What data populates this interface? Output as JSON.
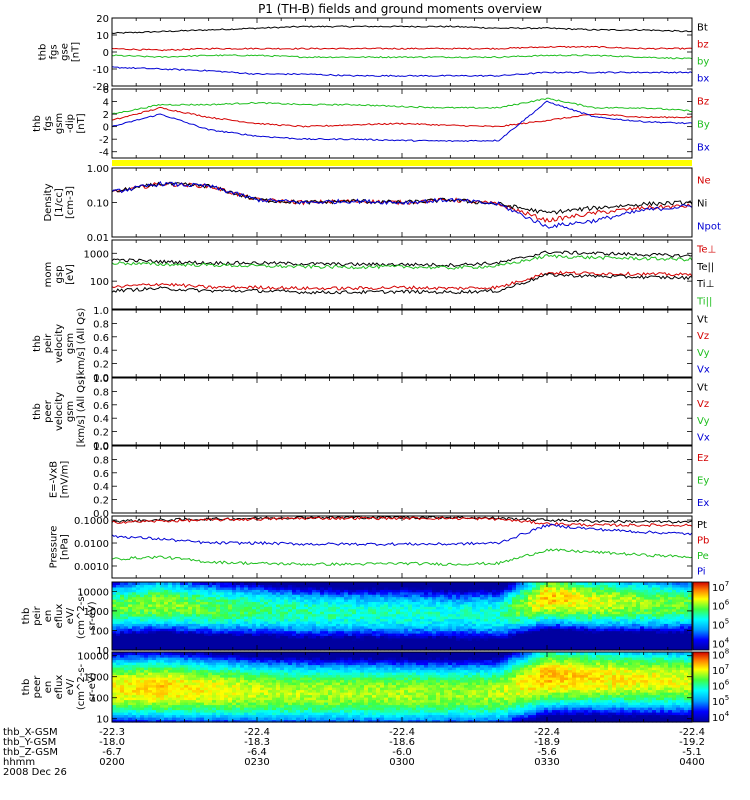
{
  "title": "P1 (TH-B) fields and ground moments overview",
  "chart_data": [
    {
      "type": "line",
      "ylabel": [
        "thb",
        "fgs",
        "gse",
        "[nT]"
      ],
      "ylim": [
        -20,
        20
      ],
      "yticks": [
        20,
        10,
        0,
        -10,
        -20
      ],
      "yscale": "linear",
      "legend": [
        {
          "name": "Bt",
          "color": "#000000"
        },
        {
          "name": "bz",
          "color": "#d40000"
        },
        {
          "name": "by",
          "color": "#1fbf1f"
        },
        {
          "name": "bx",
          "color": "#0000d4"
        }
      ],
      "series": [
        {
          "name": "Bt",
          "values": [
            11,
            12,
            13,
            14,
            15,
            15,
            15,
            15,
            14,
            14,
            13,
            13,
            12
          ]
        },
        {
          "name": "bz",
          "values": [
            2,
            1,
            2,
            2,
            2,
            2,
            2,
            2,
            2,
            3,
            3,
            2,
            2
          ]
        },
        {
          "name": "by",
          "values": [
            -2,
            -3,
            -2,
            -2,
            -3,
            -3,
            -3,
            -3,
            -3,
            -2,
            -2,
            -3,
            -4
          ]
        },
        {
          "name": "bx",
          "values": [
            -9,
            -10,
            -11,
            -13,
            -13,
            -14,
            -14,
            -14,
            -14,
            -12,
            -12,
            -12,
            -12
          ]
        }
      ]
    },
    {
      "type": "line",
      "ylabel": [
        "thb",
        "fgs",
        "gsm",
        "-dip",
        "[nT]"
      ],
      "ylim": [
        -5,
        6
      ],
      "yticks": [
        6,
        4,
        2,
        0,
        -2,
        -4
      ],
      "yscale": "linear",
      "legend": [
        {
          "name": "Bz",
          "color": "#d40000"
        },
        {
          "name": "By",
          "color": "#1fbf1f"
        },
        {
          "name": "Bx",
          "color": "#0000d4"
        }
      ],
      "series": [
        {
          "name": "Bz",
          "values": [
            1,
            3,
            1.5,
            0.5,
            0,
            0.3,
            0.5,
            0.2,
            0,
            1,
            2,
            1.5,
            1.5
          ]
        },
        {
          "name": "By",
          "values": [
            2,
            3.5,
            3.5,
            3.8,
            3.5,
            3.5,
            3.2,
            3,
            3,
            4.5,
            3,
            3,
            2.5
          ]
        },
        {
          "name": "Bx",
          "values": [
            0,
            2,
            -0.5,
            -1.5,
            -2,
            -2,
            -2.2,
            -2.3,
            -2.2,
            4,
            1.5,
            0.8,
            0.5
          ]
        }
      ]
    },
    {
      "type": "line",
      "ylabel": [
        "Density",
        "[1/cc]",
        "[cm-3]"
      ],
      "ylim": [
        0.01,
        1.0
      ],
      "yticks": [
        "1.00",
        "0.10",
        "0.01"
      ],
      "yscale": "log",
      "legend": [
        {
          "name": "Ne",
          "color": "#d40000"
        },
        {
          "name": "Ni",
          "color": "#000000"
        },
        {
          "name": "Npot",
          "color": "#0000d4"
        }
      ],
      "series": [
        {
          "name": "Ne",
          "values": [
            0.2,
            0.35,
            0.3,
            0.12,
            0.1,
            0.11,
            0.1,
            0.12,
            0.09,
            0.03,
            0.05,
            0.07,
            0.08
          ]
        },
        {
          "name": "Ni",
          "values": [
            0.2,
            0.35,
            0.3,
            0.12,
            0.1,
            0.11,
            0.1,
            0.12,
            0.09,
            0.05,
            0.07,
            0.09,
            0.1
          ]
        },
        {
          "name": "Npot",
          "values": [
            0.2,
            0.35,
            0.3,
            0.12,
            0.1,
            0.11,
            0.1,
            0.12,
            0.09,
            0.02,
            0.03,
            0.06,
            0.08
          ]
        }
      ]
    },
    {
      "type": "line",
      "ylabel": [
        "mom",
        "gsp",
        "[eV]"
      ],
      "ylim": [
        10,
        3000
      ],
      "yticks": [
        "1000",
        "100"
      ],
      "yscale": "log",
      "legend": [
        {
          "name": "Te⊥",
          "color": "#d40000"
        },
        {
          "name": "Te||",
          "color": "#000000"
        },
        {
          "name": "Ti⊥",
          "color": "#000000"
        },
        {
          "name": "Ti||",
          "color": "#1fbf1f"
        }
      ],
      "series": [
        {
          "name": "Ti⊥",
          "values": [
            600,
            500,
            450,
            450,
            420,
            400,
            400,
            380,
            450,
            1100,
            1000,
            900,
            800
          ]
        },
        {
          "name": "Ti||",
          "values": [
            450,
            400,
            380,
            350,
            330,
            320,
            330,
            300,
            350,
            800,
            700,
            650,
            600
          ]
        },
        {
          "name": "Te⊥",
          "values": [
            60,
            80,
            60,
            60,
            55,
            55,
            60,
            55,
            60,
            200,
            190,
            180,
            170
          ]
        },
        {
          "name": "Te||",
          "values": [
            45,
            55,
            45,
            45,
            40,
            40,
            42,
            40,
            45,
            170,
            150,
            140,
            130
          ]
        }
      ]
    },
    {
      "type": "line",
      "ylabel": [
        "thb",
        "peir",
        "velocity",
        "gsm",
        "[km/s] (All Qs)"
      ],
      "ylim": [
        0.0,
        1.0
      ],
      "yticks": [
        "1.0",
        "0.8",
        "0.6",
        "0.4",
        "0.2",
        "0.0"
      ],
      "yscale": "linear",
      "legend": [
        {
          "name": "Vt",
          "color": "#000000"
        },
        {
          "name": "Vz",
          "color": "#d40000"
        },
        {
          "name": "Vy",
          "color": "#1fbf1f"
        },
        {
          "name": "Vx",
          "color": "#0000d4"
        }
      ],
      "series": []
    },
    {
      "type": "line",
      "ylabel": [
        "thb",
        "peer",
        "velocity",
        "gsm",
        "[km/s] (All Qs)"
      ],
      "ylim": [
        0.0,
        1.0
      ],
      "yticks": [
        "1.0",
        "0.8",
        "0.6",
        "0.4",
        "0.2",
        "0.0"
      ],
      "yscale": "linear",
      "legend": [
        {
          "name": "Vt",
          "color": "#000000"
        },
        {
          "name": "Vz",
          "color": "#d40000"
        },
        {
          "name": "Vy",
          "color": "#1fbf1f"
        },
        {
          "name": "Vx",
          "color": "#0000d4"
        }
      ],
      "series": []
    },
    {
      "type": "line",
      "ylabel": [
        "E=-VxB",
        "[mV/m]"
      ],
      "ylim": [
        0.0,
        1.0
      ],
      "yticks": [
        "1.0",
        "0.8",
        "0.6",
        "0.4",
        "0.2",
        "0.0"
      ],
      "yscale": "linear",
      "legend": [
        {
          "name": "Ez",
          "color": "#d40000"
        },
        {
          "name": "Ey",
          "color": "#1fbf1f"
        },
        {
          "name": "Ex",
          "color": "#0000d4"
        }
      ],
      "series": []
    },
    {
      "type": "line",
      "ylabel": [
        "Pressure",
        "[nPa]"
      ],
      "ylim": [
        0.0003,
        0.15
      ],
      "yticks": [
        "0.1000",
        "0.0100",
        "0.0010"
      ],
      "yscale": "log",
      "legend": [
        {
          "name": "Pt",
          "color": "#000000"
        },
        {
          "name": "Pb",
          "color": "#d40000"
        },
        {
          "name": "Pe",
          "color": "#1fbf1f"
        },
        {
          "name": "Pi",
          "color": "#0000d4"
        }
      ],
      "series": [
        {
          "name": "Pt",
          "values": [
            0.09,
            0.1,
            0.11,
            0.12,
            0.13,
            0.13,
            0.13,
            0.13,
            0.12,
            0.1,
            0.09,
            0.085,
            0.08
          ]
        },
        {
          "name": "Pb",
          "values": [
            0.08,
            0.09,
            0.1,
            0.11,
            0.12,
            0.12,
            0.12,
            0.12,
            0.11,
            0.07,
            0.06,
            0.06,
            0.06
          ]
        },
        {
          "name": "Pi",
          "values": [
            0.02,
            0.015,
            0.01,
            0.01,
            0.009,
            0.009,
            0.009,
            0.009,
            0.01,
            0.06,
            0.04,
            0.03,
            0.025
          ]
        },
        {
          "name": "Pe",
          "values": [
            0.002,
            0.0025,
            0.0015,
            0.0013,
            0.0012,
            0.0012,
            0.0013,
            0.0012,
            0.0013,
            0.005,
            0.004,
            0.003,
            0.0025
          ]
        }
      ]
    },
    {
      "type": "heatmap",
      "ylabel": [
        "thb",
        "peir",
        "en",
        "eflux",
        "eV/",
        "(cm^2-s-",
        "sr-eV)"
      ],
      "ylim": [
        10,
        30000
      ],
      "yticks": [
        "10000",
        "1000",
        "100",
        "10"
      ],
      "yscale": "log",
      "colorbar": {
        "min_exp": 3.6,
        "max_exp": 7.2,
        "tick_exps": [
          7,
          6,
          5,
          4
        ]
      },
      "peak_energy_eV": [
        1500,
        2500,
        1500,
        1200,
        900,
        800,
        800,
        700,
        700,
        5000,
        3000,
        2500,
        2200
      ],
      "peak_flux_exp": [
        5.8,
        6.0,
        5.8,
        5.6,
        5.5,
        5.4,
        5.4,
        5.3,
        5.4,
        6.5,
        6.2,
        6.0,
        5.8
      ]
    },
    {
      "type": "heatmap",
      "ylabel": [
        "thb",
        "peer",
        "en",
        "eflux",
        "eV/",
        "(cm^2-s-",
        "sr-eV)"
      ],
      "ylim": [
        7,
        15000
      ],
      "yticks": [
        "10000",
        "1000",
        "100",
        "10"
      ],
      "yscale": "log",
      "colorbar": {
        "min_exp": 3.6,
        "max_exp": 8.1,
        "tick_exps": [
          8,
          7,
          6,
          5,
          4
        ]
      },
      "peak_energy_eV": [
        300,
        300,
        250,
        200,
        180,
        180,
        170,
        170,
        180,
        1000,
        900,
        800,
        700
      ],
      "peak_flux_exp": [
        7.0,
        7.2,
        7.0,
        6.8,
        6.7,
        6.7,
        6.7,
        6.6,
        6.7,
        7.3,
        7.1,
        7.0,
        6.9
      ]
    }
  ],
  "axis_footer": {
    "rows": [
      {
        "label": "thb_X-GSM",
        "values": [
          "-22.3",
          "-22.4",
          "-22.4",
          "-22.4",
          "-22.4"
        ]
      },
      {
        "label": "thb_Y-GSM",
        "values": [
          "-18.0",
          "-18.3",
          "-18.6",
          "-18.9",
          "-19.2"
        ]
      },
      {
        "label": "thb_Z-GSM",
        "values": [
          "-6.7",
          "-6.4",
          "-6.0",
          "-5.6",
          "-5.1"
        ]
      },
      {
        "label": "hhmm",
        "values": [
          "0200",
          "0230",
          "0300",
          "0330",
          "0400"
        ]
      }
    ],
    "date": "2008 Dec 26"
  }
}
